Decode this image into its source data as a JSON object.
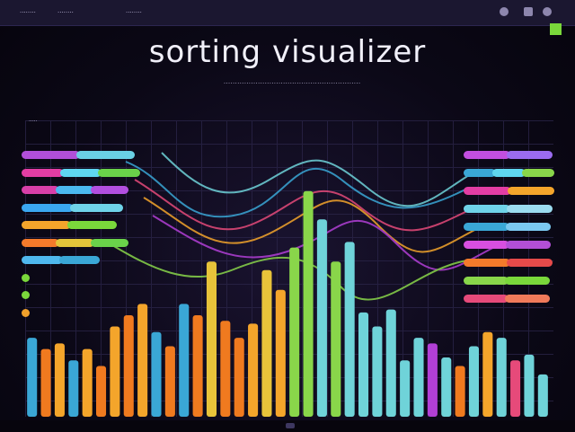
{
  "window": {
    "tabs": [
      "........",
      "........",
      "........"
    ],
    "controls": [
      "minimize-icon",
      "menu-icon",
      "settings-icon"
    ]
  },
  "header": {
    "title": "sorting visualizer",
    "subtitle": "............................................................"
  },
  "panel": {
    "label": "....."
  },
  "colors": {
    "background": "#0b0816",
    "grid": "#2a2448",
    "accent": "#7ad83b",
    "palette": [
      "#3aa7d6",
      "#f07a1f",
      "#f4a52b",
      "#e8c33a",
      "#6fd3d9",
      "#89d64a",
      "#b23fd6",
      "#e64a7a"
    ]
  },
  "left_toggles": [
    {
      "colors": [
        "#b14fd9",
        "#6ad0e4"
      ],
      "level": 0.95
    },
    {
      "colors": [
        "#e33da4",
        "#5fd6f0",
        "#6ad24a"
      ],
      "level": 1.0
    },
    {
      "colors": [
        "#d83fa8",
        "#4bb9f0",
        "#b24fe0"
      ],
      "level": 0.9
    },
    {
      "colors": [
        "#3aa7f0",
        "#6fd3e9"
      ],
      "level": 0.85
    },
    {
      "colors": [
        "#f4a52b",
        "#7ad83b"
      ],
      "level": 0.8
    },
    {
      "colors": [
        "#f47a2b",
        "#e3c53a",
        "#6ad24a"
      ],
      "level": 0.9
    },
    {
      "colors": [
        "#4fb8ee",
        "#3aa7d6"
      ],
      "level": 0.65
    },
    {
      "colors": [
        "#7ad83b"
      ],
      "level": 0.1
    },
    {
      "colors": [
        "#7ad83b"
      ],
      "level": 0.08
    },
    {
      "colors": [
        "#f0a02b"
      ],
      "level": 0.06
    }
  ],
  "right_toggles": [
    {
      "colors": [
        "#c24fe0",
        "#9b6cf0"
      ],
      "level": 0.95
    },
    {
      "colors": [
        "#3aa7d6",
        "#5fd6f0",
        "#89d64a"
      ],
      "level": 0.97
    },
    {
      "colors": [
        "#e33da4",
        "#f4a52b"
      ],
      "level": 0.97
    },
    {
      "colors": [
        "#6fd3e9",
        "#9bdcf0"
      ],
      "level": 0.95
    },
    {
      "colors": [
        "#3aa7d6",
        "#7bc8f0"
      ],
      "level": 0.93
    },
    {
      "colors": [
        "#d84fe0",
        "#b24fd6"
      ],
      "level": 0.93
    },
    {
      "colors": [
        "#f47a2b",
        "#e64a4a"
      ],
      "level": 0.95
    },
    {
      "colors": [
        "#89d64a",
        "#7ad83b"
      ],
      "level": 0.92
    },
    {
      "colors": [
        "#e64a7a",
        "#f07a5a"
      ],
      "level": 0.92
    }
  ],
  "chart_data": {
    "type": "bar",
    "series": [
      {
        "values": [
          28,
          24,
          26,
          20,
          24,
          18,
          32,
          36,
          40,
          30,
          25,
          40,
          36,
          55,
          34,
          28,
          33,
          52,
          45,
          60,
          80,
          70,
          55,
          62,
          37,
          32,
          38,
          20,
          28,
          26,
          21,
          18,
          25,
          30,
          28,
          20,
          22,
          15
        ],
        "colors": [
          "#3aa7d6",
          "#f07a1f",
          "#f4a52b",
          "#3aa7d6",
          "#f4a52b",
          "#f07a1f",
          "#f4a52b",
          "#f07a1f",
          "#f4a52b",
          "#3aa7d6",
          "#f07a1f",
          "#3aa7d6",
          "#f07a1f",
          "#e8c33a",
          "#f07a1f",
          "#f07a1f",
          "#f4a52b",
          "#e8c33a",
          "#f4a52b",
          "#89d64a",
          "#89d64a",
          "#6fd3d9",
          "#89d64a",
          "#6fd3d9",
          "#6fd3d9",
          "#6fd3d9",
          "#6fd3d9",
          "#6fd3d9",
          "#6fd3d9",
          "#b23fd6",
          "#6fd3d9",
          "#f07a1f",
          "#6fd3d9",
          "#f4a52b",
          "#6fd3d9",
          "#e64a7a",
          "#6fd3d9",
          "#6fd3d9"
        ]
      }
    ],
    "ylim": [
      0,
      100
    ],
    "grid": true
  }
}
